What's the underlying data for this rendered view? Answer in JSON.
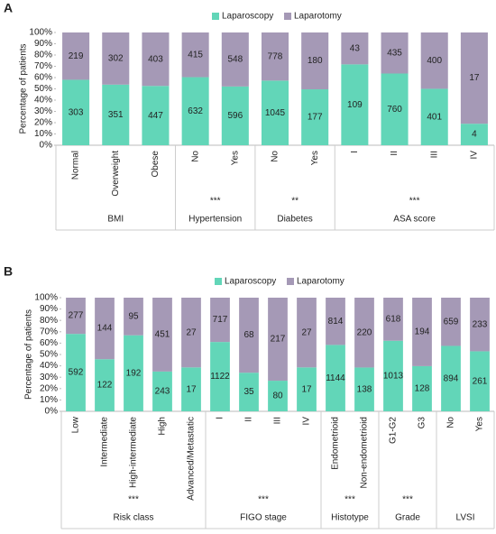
{
  "chart_data": [
    {
      "type": "bar",
      "panel": "A",
      "stacking": "percent",
      "ylabel": "Percentage of patients",
      "ylim": [
        0,
        100
      ],
      "yticks": [
        {
          "value": 0,
          "label": "0%"
        },
        {
          "value": 10,
          "label": "10%"
        },
        {
          "value": 20,
          "label": "20%"
        },
        {
          "value": 30,
          "label": "30%"
        },
        {
          "value": 40,
          "label": "40%"
        },
        {
          "value": 50,
          "label": "50%"
        },
        {
          "value": 60,
          "label": "60%"
        },
        {
          "value": 70,
          "label": "70%"
        },
        {
          "value": 80,
          "label": "80%"
        },
        {
          "value": 90,
          "label": "90%"
        },
        {
          "value": 100,
          "label": "100%"
        }
      ],
      "groups": [
        {
          "label": "BMI",
          "categories": [
            "Normal",
            "Overweight",
            "Obese"
          ]
        },
        {
          "label": "Hypertension",
          "significance": "***",
          "categories": [
            "No",
            "Yes"
          ]
        },
        {
          "label": "Diabetes",
          "significance": "**",
          "categories": [
            "No",
            "Yes"
          ]
        },
        {
          "label": "ASA score",
          "significance": "***",
          "categories": [
            "I",
            "II",
            "III",
            "IV"
          ]
        }
      ],
      "series": [
        {
          "name": "Laparoscopy",
          "color": "#62d6b8",
          "values": [
            303,
            351,
            447,
            632,
            596,
            1045,
            177,
            109,
            760,
            401,
            4
          ]
        },
        {
          "name": "Laparotomy",
          "color": "#a599b6",
          "values": [
            219,
            302,
            403,
            415,
            548,
            778,
            180,
            43,
            435,
            400,
            17
          ]
        }
      ]
    },
    {
      "type": "bar",
      "panel": "B",
      "stacking": "percent",
      "ylabel": "Percentage of patients",
      "ylim": [
        0,
        100
      ],
      "yticks": [
        {
          "value": 0,
          "label": "0%"
        },
        {
          "value": 10,
          "label": "10%"
        },
        {
          "value": 20,
          "label": "20%"
        },
        {
          "value": 30,
          "label": "30%"
        },
        {
          "value": 40,
          "label": "40%"
        },
        {
          "value": 50,
          "label": "50%"
        },
        {
          "value": 60,
          "label": "60%"
        },
        {
          "value": 70,
          "label": "70%"
        },
        {
          "value": 80,
          "label": "80%"
        },
        {
          "value": 90,
          "label": "90%"
        },
        {
          "value": 100,
          "label": "100%"
        }
      ],
      "groups": [
        {
          "label": "Risk class",
          "significance": "***",
          "categories": [
            "Low",
            "Intermediate",
            "High-intermediate",
            "High",
            "Advanced/Metastatic"
          ]
        },
        {
          "label": "FIGO stage",
          "significance": "***",
          "categories": [
            "I",
            "II",
            "III",
            "IV"
          ]
        },
        {
          "label": "Histotype",
          "significance": "***",
          "categories": [
            "Endometrioid",
            "Non-endometrioid"
          ]
        },
        {
          "label": "Grade",
          "significance": "***",
          "categories": [
            "G1-G2",
            "G3"
          ]
        },
        {
          "label": "LVSI",
          "categories": [
            "No",
            "Yes"
          ]
        }
      ],
      "series": [
        {
          "name": "Laparoscopy",
          "color": "#62d6b8",
          "values": [
            592,
            122,
            192,
            243,
            17,
            1122,
            35,
            80,
            17,
            1144,
            138,
            1013,
            128,
            894,
            261
          ]
        },
        {
          "name": "Laparotomy",
          "color": "#a599b6",
          "values": [
            277,
            144,
            95,
            451,
            27,
            717,
            68,
            217,
            27,
            814,
            220,
            618,
            194,
            659,
            233
          ]
        }
      ]
    }
  ]
}
